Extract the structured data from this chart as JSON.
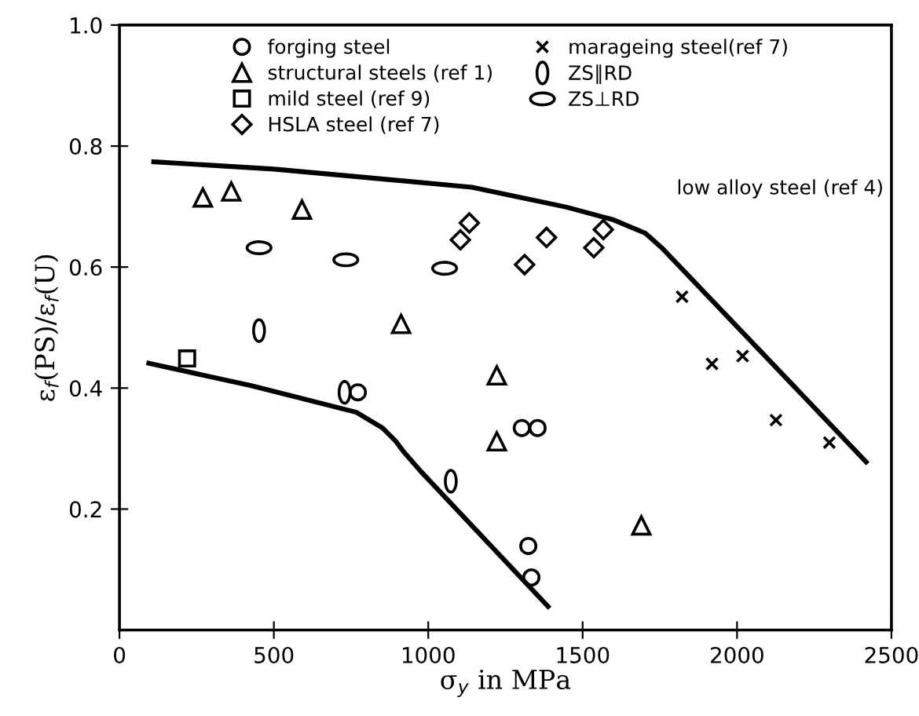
{
  "chart_data": {
    "type": "scatter",
    "xlabel": "σ$_{y}$ in MPa",
    "ylabel": "ε$_{f}$(PS)/ε$_{f}$(U)",
    "xlim": [
      0,
      2500
    ],
    "ylim": [
      0,
      1.0
    ],
    "xticks": [
      0,
      500,
      1000,
      1500,
      2000,
      2500
    ],
    "yticks": [
      0.2,
      0.4,
      0.6,
      0.8,
      {
        "value": 1.0,
        "label": "1.0"
      }
    ],
    "grid": false,
    "legend": "top",
    "annotations": [
      "low alloy steel (ref 4)"
    ],
    "series": [
      {
        "name": "forging steel",
        "marker": "circle",
        "color": "#000000",
        "x": [
          772,
          1303,
          1354,
          1324,
          1334
        ],
        "values": [
          0.393,
          0.334,
          0.334,
          0.139,
          0.087
        ]
      },
      {
        "name": "structural steels (ref 1)",
        "marker": "triangle",
        "color": "#000000",
        "x": [
          270,
          362,
          591,
          912,
          1222,
          1222,
          1690
        ],
        "values": [
          0.715,
          0.725,
          0.695,
          0.506,
          0.421,
          0.312,
          0.173
        ]
      },
      {
        "name": "mild steel (ref 9)",
        "marker": "square",
        "color": "#000000",
        "x": [
          219
        ],
        "values": [
          0.449
        ]
      },
      {
        "name": "HSLA steel (ref 7)",
        "marker": "diamond",
        "color": "#000000",
        "x": [
          1133,
          1104,
          1383,
          1312,
          1567,
          1536
        ],
        "values": [
          0.673,
          0.645,
          0.649,
          0.604,
          0.662,
          0.632
        ]
      },
      {
        "name": "marageing steel(ref 7)",
        "marker": "cross",
        "color": "#000000",
        "x": [
          1822,
          1919,
          2018,
          2126,
          2299
        ],
        "values": [
          0.551,
          0.44,
          0.453,
          0.347,
          0.31
        ]
      },
      {
        "name": "ZS∥RD",
        "color": "#000000",
        "x": [
          452,
          729,
          1073
        ],
        "values": [
          0.495,
          0.393,
          0.246
        ]
      },
      {
        "name": "ZS⊥RD",
        "color": "#000000",
        "x": [
          452,
          733,
          1053
        ],
        "values": [
          0.632,
          0.612,
          0.598
        ]
      },
      {
        "type": "line",
        "color": "#000000",
        "x": [
          111,
          500,
          800,
          1141,
          1448,
          1600,
          1703,
          1760,
          2418
        ],
        "values": [
          0.774,
          0.762,
          0.748,
          0.732,
          0.699,
          0.678,
          0.656,
          0.63,
          0.278
        ]
      },
      {
        "type": "line",
        "color": "#000000",
        "x": [
          95,
          427,
          767,
          852,
          895,
          920,
          971,
          1388
        ],
        "values": [
          0.441,
          0.404,
          0.36,
          0.334,
          0.312,
          0.295,
          0.265,
          0.039
        ]
      }
    ]
  }
}
